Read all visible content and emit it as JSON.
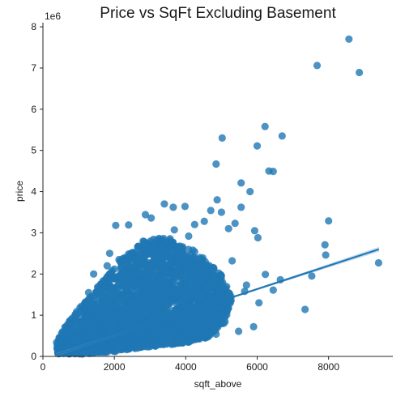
{
  "chart_data": {
    "type": "scatter",
    "title": "Price vs SqFt Excluding Basement",
    "xlabel": "sqft_above",
    "ylabel": "price",
    "y_offset_label": "1e6",
    "xlim": [
      0,
      9800
    ],
    "ylim": [
      0,
      8.1
    ],
    "xticks": [
      0,
      2000,
      4000,
      6000,
      8000
    ],
    "yticks": [
      0,
      1,
      2,
      3,
      4,
      5,
      6,
      7,
      8
    ],
    "grid": false,
    "legend": "none",
    "colors": {
      "points": "#1f77b4",
      "band": "#a6c8e6"
    },
    "regression": {
      "x": [
        370,
        9410
      ],
      "y": [
        0.04,
        2.6
      ]
    },
    "outliers": [
      {
        "x": 8570,
        "y": 7.7
      },
      {
        "x": 7680,
        "y": 7.06
      },
      {
        "x": 8860,
        "y": 6.89
      },
      {
        "x": 6220,
        "y": 5.58
      },
      {
        "x": 6700,
        "y": 5.35
      },
      {
        "x": 5020,
        "y": 5.3
      },
      {
        "x": 6000,
        "y": 5.11
      },
      {
        "x": 4850,
        "y": 4.67
      },
      {
        "x": 6330,
        "y": 4.5
      },
      {
        "x": 6450,
        "y": 4.49
      },
      {
        "x": 5550,
        "y": 4.21
      },
      {
        "x": 5800,
        "y": 4.0
      },
      {
        "x": 4880,
        "y": 3.8
      },
      {
        "x": 9400,
        "y": 2.27
      },
      {
        "x": 7340,
        "y": 1.14
      },
      {
        "x": 7530,
        "y": 1.95
      },
      {
        "x": 8000,
        "y": 3.29
      },
      {
        "x": 7900,
        "y": 2.71
      },
      {
        "x": 7920,
        "y": 2.46
      },
      {
        "x": 6650,
        "y": 1.86
      },
      {
        "x": 6450,
        "y": 1.61
      },
      {
        "x": 5480,
        "y": 0.61
      },
      {
        "x": 6050,
        "y": 1.3
      },
      {
        "x": 6230,
        "y": 1.99
      },
      {
        "x": 3400,
        "y": 3.7
      },
      {
        "x": 3650,
        "y": 3.62
      },
      {
        "x": 3980,
        "y": 3.64
      },
      {
        "x": 2870,
        "y": 3.44
      },
      {
        "x": 3030,
        "y": 3.36
      },
      {
        "x": 2400,
        "y": 3.19
      },
      {
        "x": 2040,
        "y": 3.18
      },
      {
        "x": 4250,
        "y": 3.2
      },
      {
        "x": 4520,
        "y": 3.28
      },
      {
        "x": 5000,
        "y": 3.5
      },
      {
        "x": 4700,
        "y": 3.54
      },
      {
        "x": 5550,
        "y": 3.62
      },
      {
        "x": 5380,
        "y": 3.23
      },
      {
        "x": 5930,
        "y": 3.05
      },
      {
        "x": 6020,
        "y": 2.88
      },
      {
        "x": 5200,
        "y": 3.1
      },
      {
        "x": 1420,
        "y": 2.0
      },
      {
        "x": 1280,
        "y": 1.55
      },
      {
        "x": 1870,
        "y": 2.5
      },
      {
        "x": 2130,
        "y": 2.35
      },
      {
        "x": 2580,
        "y": 2.53
      },
      {
        "x": 4080,
        "y": 2.92
      },
      {
        "x": 3680,
        "y": 3.07
      },
      {
        "x": 1800,
        "y": 2.2
      },
      {
        "x": 5300,
        "y": 2.32
      },
      {
        "x": 5000,
        "y": 1.95
      },
      {
        "x": 5700,
        "y": 1.73
      },
      {
        "x": 4600,
        "y": 0.82
      },
      {
        "x": 5900,
        "y": 0.72
      },
      {
        "x": 5650,
        "y": 1.58
      },
      {
        "x": 800,
        "y": 0.56
      },
      {
        "x": 620,
        "y": 0.5
      },
      {
        "x": 4850,
        "y": 0.54
      }
    ],
    "cloud": {
      "description": "dense point cloud",
      "polygon": [
        [
          400,
          0.05
        ],
        [
          1000,
          0.05
        ],
        [
          2000,
          0.12
        ],
        [
          3000,
          0.23
        ],
        [
          4000,
          0.33
        ],
        [
          4600,
          0.45
        ],
        [
          5100,
          0.8
        ],
        [
          5300,
          1.4
        ],
        [
          5000,
          2.0
        ],
        [
          4300,
          2.55
        ],
        [
          3500,
          2.9
        ],
        [
          2800,
          2.8
        ],
        [
          2200,
          2.35
        ],
        [
          1600,
          1.75
        ],
        [
          1000,
          1.15
        ],
        [
          600,
          0.7
        ],
        [
          380,
          0.35
        ]
      ],
      "count": 2600
    }
  }
}
